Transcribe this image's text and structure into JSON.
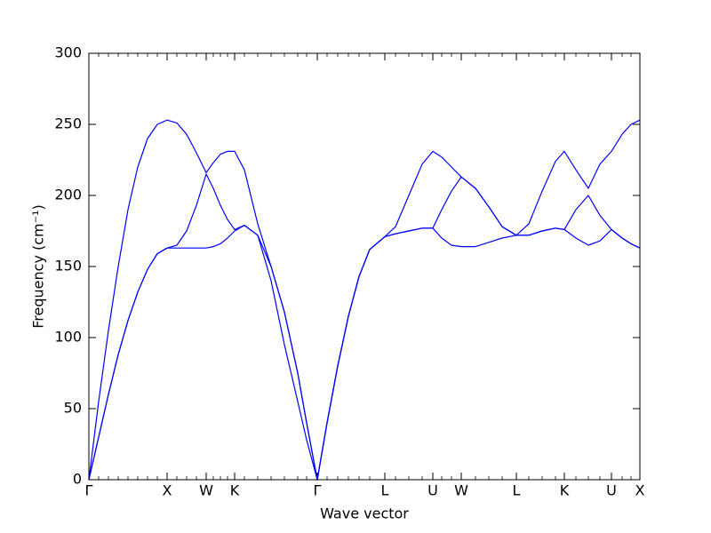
{
  "chart_data": {
    "type": "line",
    "xlabel": "Wave vector",
    "ylabel": "Frequency (cm⁻¹)",
    "x": [
      0,
      0.11,
      0.22,
      0.33,
      0.44,
      0.55,
      0.66,
      0.77,
      0.88,
      0.99,
      1.1,
      1.21,
      1.32,
      1.4,
      1.48,
      1.56,
      1.64,
      1.75,
      1.9,
      2.05,
      2.2,
      2.35,
      2.45,
      2.57,
      2.68,
      2.8,
      2.92,
      3.04,
      3.16,
      3.33,
      3.45,
      3.6,
      3.75,
      3.87,
      3.97,
      4.08,
      4.19,
      4.35,
      4.5,
      4.65,
      4.81,
      4.95,
      5.1,
      5.25,
      5.35,
      5.48,
      5.62,
      5.75,
      5.88,
      6.0,
      6.1,
      6.2
    ],
    "series": [
      {
        "color": "#0000ff",
        "values": [
          0,
          30,
          60,
          88,
          112,
          132,
          148,
          159,
          163,
          163,
          163,
          163,
          163,
          164,
          166,
          170,
          175,
          179,
          172,
          140,
          95,
          55,
          28,
          0,
          40,
          80,
          115,
          143,
          162,
          171,
          173,
          175,
          177,
          177,
          170,
          165,
          164,
          164,
          167,
          170,
          172,
          172,
          175,
          177,
          176,
          170,
          165,
          168,
          176,
          170,
          166,
          163
        ]
      },
      {
        "color": "#0000ff",
        "values": [
          0,
          30,
          60,
          88,
          112,
          132,
          148,
          159,
          163,
          165,
          175,
          193,
          215,
          205,
          193,
          183,
          176,
          179,
          172,
          150,
          118,
          75,
          40,
          0,
          40,
          80,
          115,
          143,
          162,
          171,
          173,
          175,
          177,
          177,
          190,
          203,
          213,
          205,
          192,
          178,
          172,
          172,
          175,
          177,
          176,
          190,
          200,
          186,
          176,
          170,
          166,
          163
        ]
      },
      {
        "color": "#0000ff",
        "values": [
          0,
          55,
          105,
          150,
          190,
          220,
          240,
          250,
          253,
          251,
          243,
          230,
          216,
          223,
          229,
          231,
          231,
          218,
          180,
          150,
          118,
          75,
          40,
          0,
          40,
          80,
          115,
          143,
          162,
          171,
          178,
          200,
          222,
          231,
          227,
          220,
          213,
          205,
          192,
          178,
          172,
          180,
          203,
          224,
          231,
          218,
          205,
          222,
          231,
          243,
          250,
          253
        ]
      }
    ],
    "xlim": [
      0,
      6.2
    ],
    "xticks": [
      {
        "value": 0,
        "label": "Γ"
      },
      {
        "value": 0.88,
        "label": "X"
      },
      {
        "value": 1.32,
        "label": "W"
      },
      {
        "value": 1.64,
        "label": "K"
      },
      {
        "value": 2.57,
        "label": "Γ"
      },
      {
        "value": 3.33,
        "label": "L"
      },
      {
        "value": 3.87,
        "label": "U"
      },
      {
        "value": 4.19,
        "label": "W"
      },
      {
        "value": 4.81,
        "label": "L"
      },
      {
        "value": 5.35,
        "label": "K"
      },
      {
        "value": 5.88,
        "label": "U"
      },
      {
        "value": 6.2,
        "label": "X"
      }
    ],
    "ylim": [
      0,
      300
    ],
    "yticks": [
      0,
      50,
      100,
      150,
      200,
      250,
      300
    ]
  }
}
